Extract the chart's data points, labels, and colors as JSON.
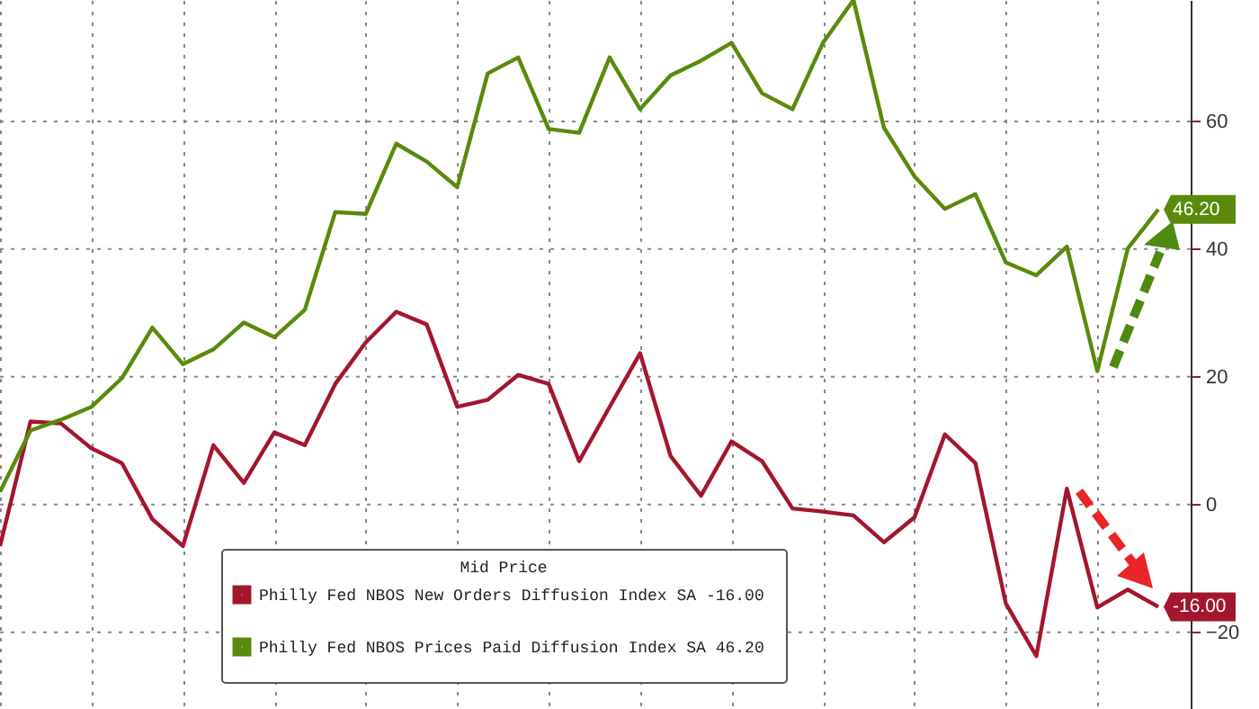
{
  "chart_data": {
    "type": "line",
    "legend_title": "Mid Price",
    "categories": [
      null,
      null,
      null,
      null,
      null,
      null,
      null,
      null,
      null,
      null,
      null,
      null,
      null,
      null,
      null,
      null,
      null,
      null,
      null,
      null,
      null,
      null,
      null,
      null,
      null,
      null,
      null,
      null,
      null,
      null,
      null,
      null,
      null,
      null,
      null,
      null,
      null,
      null,
      null
    ],
    "series": [
      {
        "name": "Philly Fed NBOS New Orders Diffusion Index SA  -16.00",
        "color": "#a3162e",
        "values": [
          -6.5,
          13,
          12.7,
          8.8,
          6.5,
          -2.3,
          -6.5,
          9.3,
          3.4,
          11.3,
          9.3,
          18.9,
          25.4,
          30.2,
          28.2,
          15.3,
          16.4,
          20.3,
          18.9,
          6.8,
          15.3,
          23.7,
          7.6,
          1.4,
          9.9,
          6.8,
          -0.6,
          -1.1,
          -1.7,
          -5.9,
          -2,
          11,
          6.5,
          -15.5,
          -23.7,
          2.5,
          -16.1,
          -13.3,
          -16
        ],
        "value_labels": [
          null,
          null,
          null,
          null,
          null,
          null,
          null,
          null,
          null,
          null,
          null,
          null,
          null,
          null,
          null,
          null,
          null,
          null,
          null,
          null,
          null,
          null,
          null,
          null,
          null,
          null,
          null,
          null,
          null,
          null,
          null,
          null,
          null,
          null,
          null,
          null,
          null,
          null,
          "-16.00"
        ]
      },
      {
        "name": "Philly Fed NBOS Prices Paid Diffusion Index SA  46.20",
        "color": "#5a8a0c",
        "values": [
          2,
          11.6,
          13.3,
          15.3,
          19.8,
          27.7,
          22,
          24.3,
          28.5,
          26.2,
          30.5,
          45.8,
          45.5,
          56.5,
          53.7,
          49.7,
          67.5,
          70,
          58.8,
          58.2,
          70,
          61.9,
          67.2,
          69.5,
          72.3,
          64.4,
          61.9,
          72.3,
          79,
          59,
          51.4,
          46.3,
          48.6,
          37.9,
          35.9,
          40.4,
          20.9,
          40.1,
          46.2
        ],
        "value_labels": [
          null,
          null,
          null,
          null,
          null,
          null,
          null,
          null,
          null,
          null,
          null,
          null,
          null,
          null,
          null,
          null,
          null,
          null,
          null,
          null,
          null,
          null,
          null,
          null,
          null,
          null,
          null,
          null,
          null,
          null,
          null,
          null,
          null,
          null,
          null,
          null,
          null,
          null,
          "46.20"
        ]
      }
    ],
    "ylim": [
      -32,
      79
    ],
    "yticks": [
      -20,
      0,
      20,
      40,
      60
    ],
    "grid": true,
    "legend": "bottom",
    "tick_labels": "y",
    "marker": "none",
    "line_style": "solid"
  }
}
